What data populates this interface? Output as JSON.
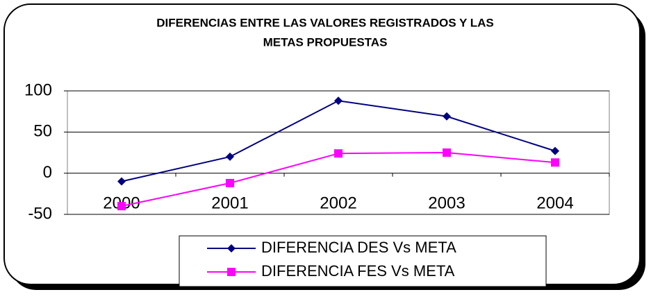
{
  "chart_data": {
    "type": "line",
    "title": [
      "DIFERENCIAS ENTRE LAS VALORES REGISTRADOS Y LAS",
      "METAS PROPUESTAS"
    ],
    "categories": [
      "2000",
      "2001",
      "2002",
      "2003",
      "2004"
    ],
    "series": [
      {
        "name": "DIFERENCIA DES Vs META",
        "color": "#000080",
        "marker": "diamond",
        "values": [
          -10,
          20,
          88,
          69,
          27
        ]
      },
      {
        "name": "DIFERENCIA FES Vs META",
        "color": "#ff00ff",
        "marker": "square",
        "values": [
          -40,
          -12,
          24,
          25,
          13
        ]
      }
    ],
    "ylim": [
      -50,
      100
    ],
    "yticks": [
      -50,
      0,
      50,
      100
    ],
    "grid": true,
    "legend": "bottom"
  }
}
